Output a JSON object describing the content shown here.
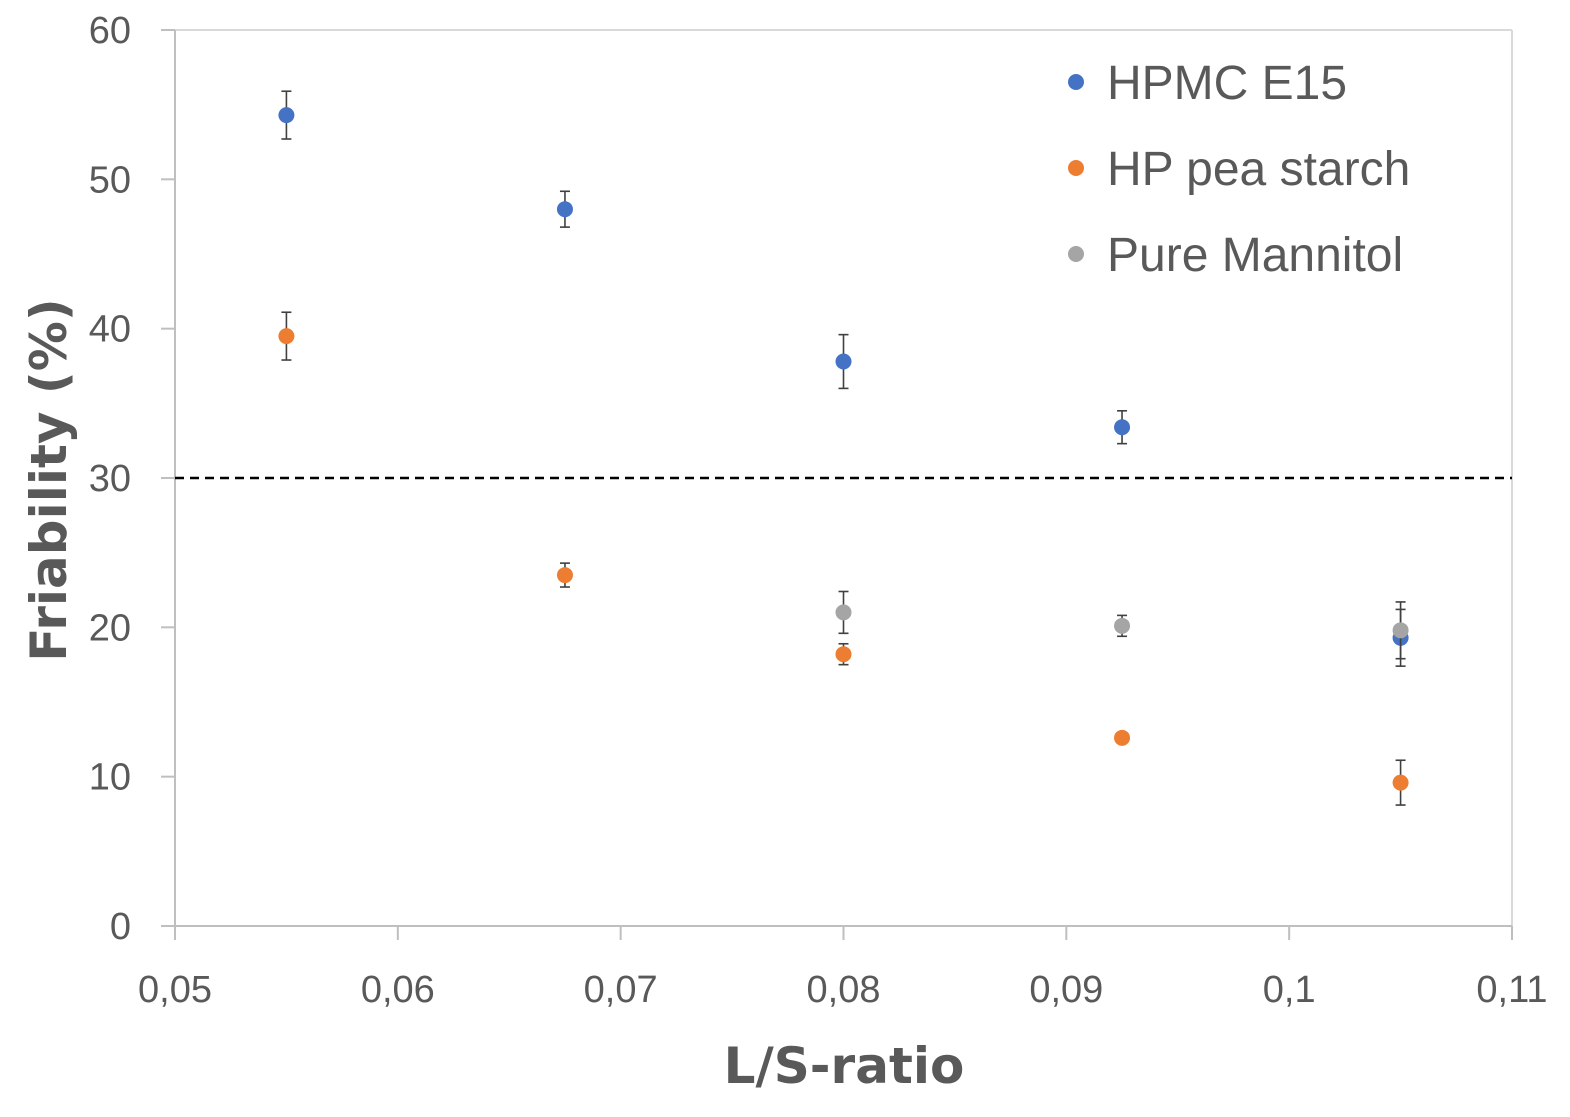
{
  "chart_data": {
    "type": "scatter",
    "xlabel": "L/S-ratio",
    "ylabel": "Friability (%)",
    "xlim": [
      0.05,
      0.11
    ],
    "ylim": [
      0,
      60
    ],
    "xticks": [
      0.05,
      0.06,
      0.07,
      0.08,
      0.09,
      0.1,
      0.11
    ],
    "xtick_labels": [
      "0,05",
      "0,06",
      "0,07",
      "0,08",
      "0,09",
      "0,1",
      "0,11"
    ],
    "yticks": [
      0,
      10,
      20,
      30,
      40,
      50,
      60
    ],
    "ytick_labels": [
      "0",
      "10",
      "20",
      "30",
      "40",
      "50",
      "60"
    ],
    "grid": false,
    "legend_position": "top-right",
    "reference_line": {
      "y": 30,
      "style": "dashed",
      "color": "#000000"
    },
    "series": [
      {
        "name": "HPMC E15",
        "color": "#4472C4",
        "points": [
          {
            "x": 0.055,
            "y": 54.3,
            "err": 1.6
          },
          {
            "x": 0.0675,
            "y": 48.0,
            "err": 1.2
          },
          {
            "x": 0.08,
            "y": 37.8,
            "err": 1.8
          },
          {
            "x": 0.0925,
            "y": 33.4,
            "err": 1.1
          },
          {
            "x": 0.105,
            "y": 19.3,
            "err": 1.9
          }
        ]
      },
      {
        "name": "HP pea starch",
        "color": "#ED7D31",
        "points": [
          {
            "x": 0.055,
            "y": 39.5,
            "err": 1.6
          },
          {
            "x": 0.0675,
            "y": 23.5,
            "err": 0.8
          },
          {
            "x": 0.08,
            "y": 18.2,
            "err": 0.7
          },
          {
            "x": 0.0925,
            "y": 12.6,
            "err": 0
          },
          {
            "x": 0.105,
            "y": 9.6,
            "err": 1.5
          }
        ]
      },
      {
        "name": "Pure Mannitol",
        "color": "#A5A5A5",
        "points": [
          {
            "x": 0.08,
            "y": 21.0,
            "err": 1.4
          },
          {
            "x": 0.0925,
            "y": 20.1,
            "err": 0.7
          },
          {
            "x": 0.105,
            "y": 19.8,
            "err": 1.9
          }
        ]
      }
    ]
  }
}
